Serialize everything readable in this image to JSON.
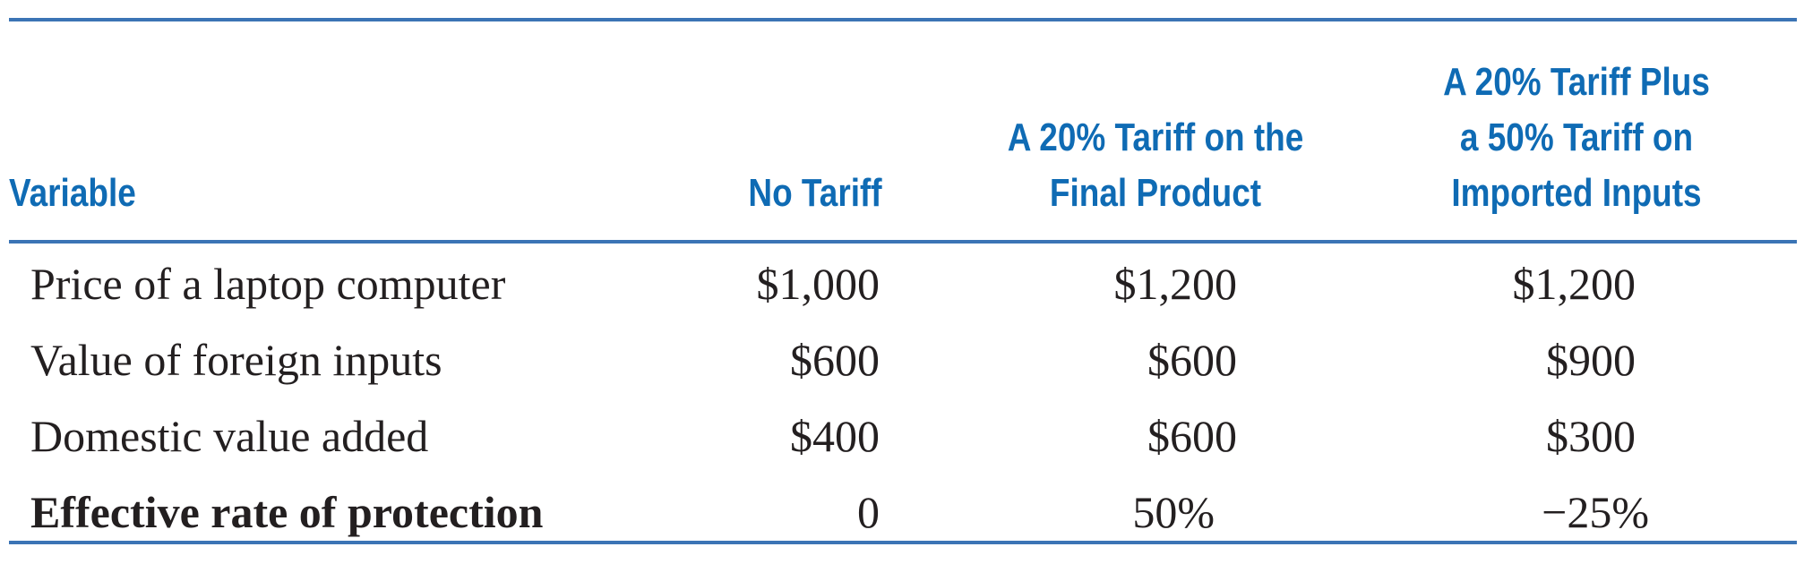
{
  "header": {
    "variable": "Variable",
    "col1": [
      "No Tariff"
    ],
    "col2": [
      "A 20% Tariff on the",
      "Final Product"
    ],
    "col3": [
      "A 20% Tariff Plus",
      "a 50% Tariff on",
      "Imported Inputs"
    ]
  },
  "rows": [
    {
      "label": "Price of a laptop computer",
      "no_tariff": "$1,000",
      "tariff_final": "$1,200",
      "tariff_plus_inputs": "$1,200"
    },
    {
      "label": "Value of foreign inputs",
      "no_tariff": "$600",
      "tariff_final": "$600",
      "tariff_plus_inputs": "$900"
    },
    {
      "label": "Domestic value added",
      "no_tariff": "$400",
      "tariff_final": "$600",
      "tariff_plus_inputs": "$300"
    },
    {
      "label": "Effective rate of protection",
      "no_tariff": "0",
      "tariff_final": "50%",
      "tariff_plus_inputs": "−25%"
    }
  ],
  "colors": {
    "rule": "#3b74b5",
    "header_text": "#0f6bb4",
    "body_text": "#231f20"
  }
}
